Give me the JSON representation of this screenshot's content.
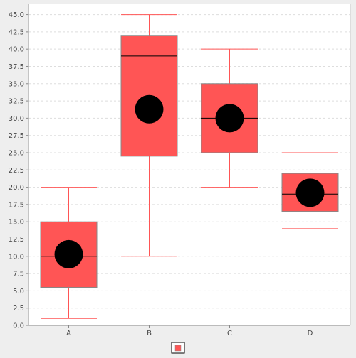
{
  "chart_data": {
    "type": "box",
    "title": "",
    "xlabel": "",
    "ylabel": "",
    "ylim": [
      0,
      46.5
    ],
    "yticks": [
      0,
      2.5,
      5,
      7.5,
      10,
      12.5,
      15,
      17.5,
      20,
      22.5,
      25,
      27.5,
      30,
      32.5,
      35,
      37.5,
      40,
      42.5,
      45
    ],
    "ytick_labels": [
      "0.0",
      "2.5",
      "5.0",
      "7.5",
      "10.0",
      "12.5",
      "15.0",
      "17.5",
      "20.0",
      "22.5",
      "25.0",
      "27.5",
      "30.0",
      "32.5",
      "35.0",
      "37.5",
      "40.0",
      "42.5",
      "45.0"
    ],
    "grid": true,
    "legend_placement": "bottom-center",
    "categories": [
      "A",
      "B",
      "C",
      "D"
    ],
    "series": [
      {
        "name": "",
        "color": "#ff5555",
        "boxes": [
          {
            "category": "A",
            "min": 1.0,
            "q1": 5.5,
            "median": 10.0,
            "q3": 15.0,
            "max": 20.0,
            "mean": 10.3
          },
          {
            "category": "B",
            "min": 10.0,
            "q1": 24.5,
            "median": 39.0,
            "q3": 42.0,
            "max": 45.0,
            "mean": 31.3
          },
          {
            "category": "C",
            "min": 20.0,
            "q1": 25.0,
            "median": 30.0,
            "q3": 35.0,
            "max": 40.0,
            "mean": 30.0
          },
          {
            "category": "D",
            "min": 14.0,
            "q1": 16.5,
            "median": 19.0,
            "q3": 22.0,
            "max": 25.0,
            "mean": 19.2
          }
        ]
      }
    ],
    "colors": {
      "plot_background": "#ffffff",
      "page_background": "#eeeeee",
      "grid": "#dddddd",
      "box_fill": "#ff5555",
      "box_stroke": "#888888",
      "whisker": "#ff5555",
      "median": "#000000",
      "mean_marker": "#000000",
      "axis": "#888888"
    }
  }
}
